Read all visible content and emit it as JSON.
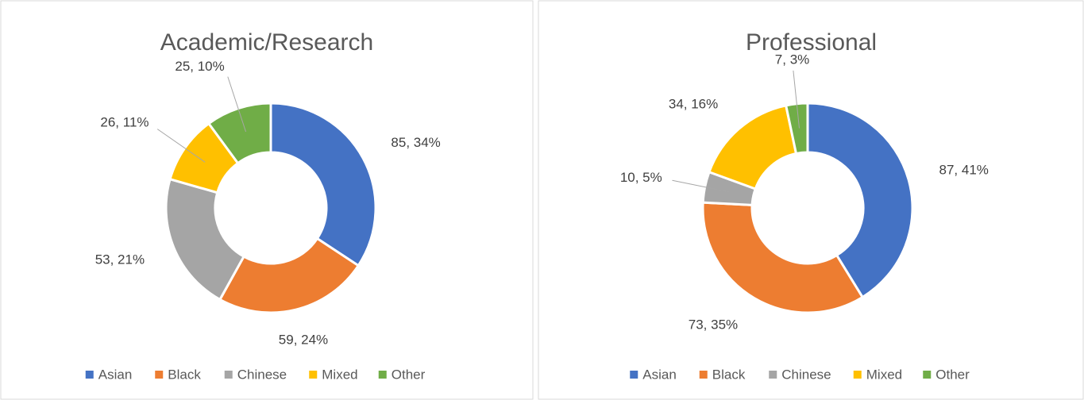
{
  "chart_data": [
    {
      "type": "donut",
      "title": "Academic/Research",
      "categories": [
        "Asian",
        "Black",
        "Chinese",
        "Mixed",
        "Other"
      ],
      "values": [
        85,
        59,
        53,
        26,
        25
      ],
      "value_labels": [
        "85, 34%",
        "59, 24%",
        "53, 21%",
        "26, 11%",
        "25, 10%"
      ],
      "colors": [
        "#4472c4",
        "#ed7d31",
        "#a5a5a5",
        "#ffc000",
        "#70ad47"
      ],
      "legend": "bottom"
    },
    {
      "type": "donut",
      "title": "Professional",
      "categories": [
        "Asian",
        "Black",
        "Chinese",
        "Mixed",
        "Other"
      ],
      "values": [
        87,
        73,
        10,
        34,
        7
      ],
      "value_labels": [
        "87, 41%",
        "73, 35%",
        "10, 5%",
        "34, 16%",
        "7, 3%"
      ],
      "colors": [
        "#4472c4",
        "#ed7d31",
        "#a5a5a5",
        "#ffc000",
        "#70ad47"
      ],
      "legend": "bottom"
    }
  ]
}
